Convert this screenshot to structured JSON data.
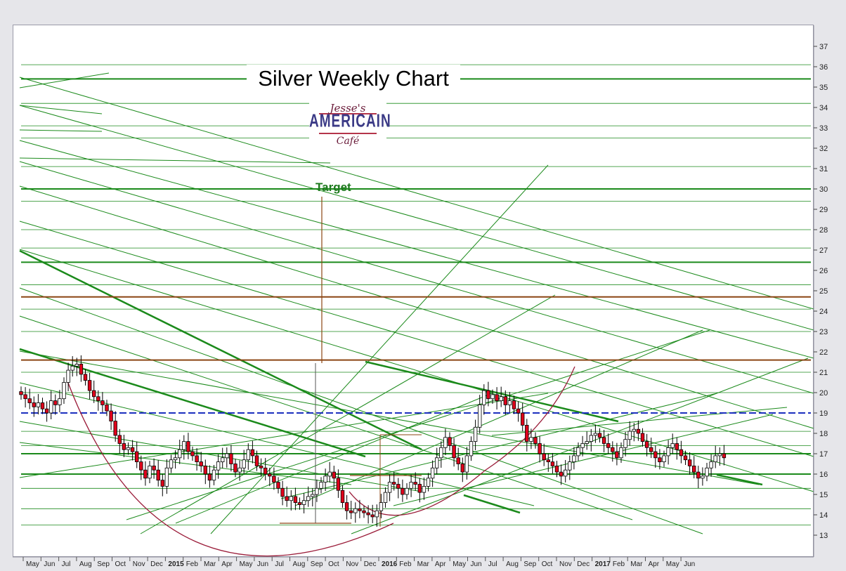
{
  "window": {
    "title": ""
  },
  "logo": {
    "line1": "Jesse's",
    "line2": "AMERICAIN",
    "line3": "Café"
  },
  "colors": {
    "green_line": "#1b8a1b",
    "brown_line": "#8b4513",
    "blue_line": "#1c2fbf",
    "candle_up": "#ffffff",
    "candle_down": "#e0001b",
    "arc": "#9b1d3a"
  },
  "chart_data": {
    "type": "candlestick",
    "title": "Silver Weekly Chart",
    "annotation_target": "Target",
    "ylim": [
      12.5,
      37.5
    ],
    "y_ticks": [
      13,
      14,
      15,
      16,
      17,
      18,
      19,
      20,
      21,
      22,
      23,
      24,
      25,
      26,
      27,
      28,
      29,
      30,
      31,
      32,
      33,
      34,
      35,
      36,
      37
    ],
    "y_tick_labels": [
      "13",
      "14",
      "15",
      "16",
      "17",
      "18",
      "19",
      "20",
      "21",
      "22",
      "23",
      "24",
      "25",
      "26",
      "27",
      "28",
      "29",
      "30",
      "31",
      "32",
      "33",
      "34",
      "35",
      "36",
      "37"
    ],
    "x_axis_labels": [
      "May",
      "Jun",
      "Jul",
      "Aug",
      "Sep",
      "Oct",
      "Nov",
      "Dec",
      "2015",
      "Feb",
      "Mar",
      "Apr",
      "May",
      "Jun",
      "Jul",
      "Aug",
      "Sep",
      "Oct",
      "Nov",
      "Dec",
      "2016",
      "Feb",
      "Mar",
      "Apr",
      "May",
      "Jun",
      "Jul",
      "Aug",
      "Sep",
      "Oct",
      "Nov",
      "Dec",
      "2017",
      "Feb",
      "Mar",
      "Apr",
      "May",
      "Jun"
    ],
    "x_axis_start": "2014-05",
    "horizontal_levels": [
      {
        "value": 35.4,
        "style": "green-thick"
      },
      {
        "value": 30.0,
        "style": "green-thick"
      },
      {
        "value": 26.4,
        "style": "green-thick"
      },
      {
        "value": 24.7,
        "style": "brown"
      },
      {
        "value": 21.6,
        "style": "brown"
      },
      {
        "value": 19.0,
        "style": "blue-dashed"
      },
      {
        "value": 17.0,
        "style": "green-thick"
      },
      {
        "value": 16.0,
        "style": "green-thick"
      }
    ],
    "weekly_closes": [
      19.9,
      19.7,
      19.5,
      19.3,
      19.5,
      19.2,
      19.0,
      19.6,
      19.4,
      19.7,
      20.5,
      21.1,
      21.3,
      21.4,
      20.9,
      20.6,
      20.1,
      19.8,
      19.6,
      19.4,
      19.1,
      18.6,
      17.9,
      17.5,
      17.2,
      17.3,
      17.1,
      16.6,
      16.2,
      15.8,
      16.4,
      16.2,
      15.7,
      15.4,
      16.3,
      16.7,
      16.8,
      17.2,
      17.6,
      17.1,
      16.9,
      16.6,
      16.4,
      16.0,
      15.7,
      16.2,
      16.6,
      16.8,
      17.0,
      16.5,
      16.1,
      16.3,
      16.7,
      17.2,
      16.9,
      16.4,
      16.3,
      16.0,
      15.9,
      15.6,
      15.3,
      14.9,
      14.7,
      14.9,
      14.6,
      14.5,
      14.7,
      14.9,
      15.0,
      15.3,
      15.6,
      15.9,
      16.1,
      15.8,
      15.2,
      14.6,
      14.2,
      14.1,
      14.3,
      14.2,
      14.1,
      14.0,
      13.9,
      14.2,
      14.6,
      15.1,
      15.6,
      15.5,
      15.3,
      15.0,
      15.3,
      15.6,
      15.5,
      15.1,
      15.4,
      15.8,
      16.3,
      16.8,
      17.3,
      17.8,
      17.4,
      16.8,
      16.5,
      16.1,
      16.9,
      17.6,
      18.3,
      19.4,
      20.1,
      19.7,
      19.9,
      19.6,
      19.8,
      19.4,
      19.6,
      19.2,
      19.0,
      18.4,
      17.6,
      17.8,
      17.5,
      17.0,
      16.7,
      16.6,
      16.4,
      16.1,
      15.9,
      16.2,
      16.6,
      16.9,
      17.3,
      17.5,
      17.6,
      17.9,
      18.0,
      17.8,
      17.5,
      17.3,
      17.1,
      16.8,
      17.3,
      17.7,
      18.1,
      18.2,
      18.0,
      17.6,
      17.3,
      17.1,
      16.8,
      16.6,
      16.9,
      17.3,
      17.5,
      17.2,
      16.9,
      16.7,
      16.4,
      16.1,
      15.8,
      15.9,
      16.3,
      16.6,
      16.9,
      17.0,
      16.8
    ]
  }
}
